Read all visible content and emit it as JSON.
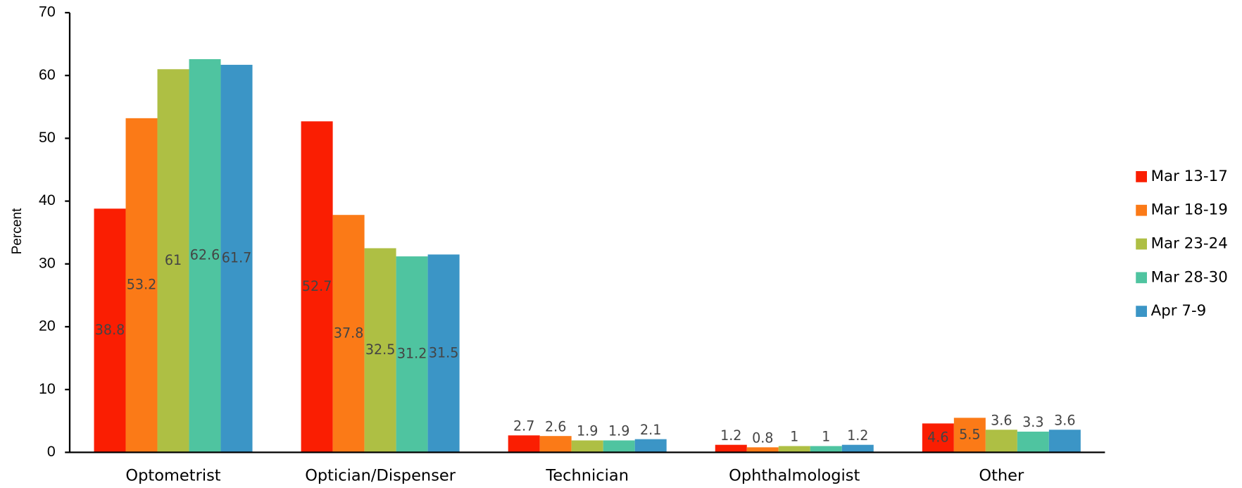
{
  "chart_data": {
    "type": "bar",
    "y_label": "Percent",
    "categories": [
      "Optometrist",
      "Optician/Dispenser",
      "Technician",
      "Ophthalmologist",
      "Other"
    ],
    "series": [
      {
        "name": "Mar 13-17",
        "color": "#fa1e02",
        "values": [
          38.8,
          52.7,
          2.7,
          1.2,
          4.6
        ]
      },
      {
        "name": "Mar 18-19",
        "color": "#fb7a17",
        "values": [
          53.2,
          37.8,
          2.6,
          0.8,
          5.5
        ]
      },
      {
        "name": "Mar 23-24",
        "color": "#aebf44",
        "values": [
          61,
          32.5,
          1.9,
          1,
          3.6
        ]
      },
      {
        "name": "Mar 28-30",
        "color": "#4fc4a0",
        "values": [
          62.6,
          31.2,
          1.9,
          1,
          3.3
        ]
      },
      {
        "name": "Apr 7-9",
        "color": "#3b95c6",
        "values": [
          61.7,
          31.5,
          2.1,
          1.2,
          3.6
        ]
      }
    ],
    "ylim": [
      0,
      70
    ],
    "yticks": [
      0,
      10,
      20,
      30,
      40,
      50,
      60,
      70
    ],
    "legend": "right",
    "data_labels": true
  }
}
